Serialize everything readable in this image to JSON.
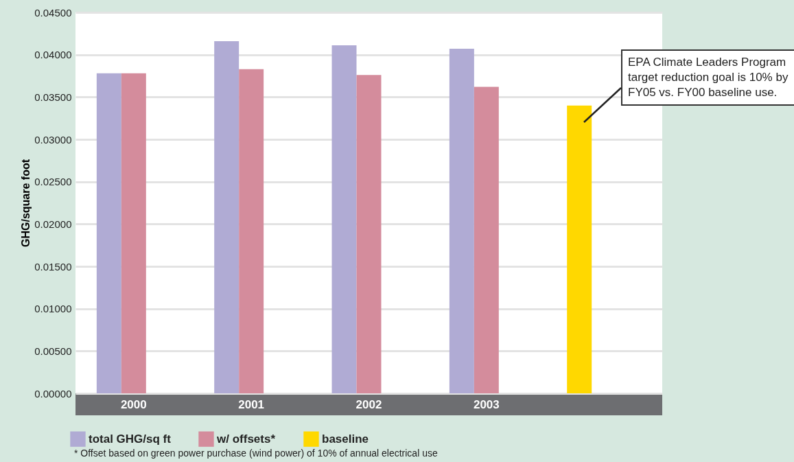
{
  "chart_data": {
    "type": "bar",
    "ylabel": "GHG/square foot",
    "categories": [
      "2000",
      "2001",
      "2002",
      "2003",
      null
    ],
    "series": [
      {
        "name": "total GHG/sq ft",
        "color": "#b0abd4",
        "values": [
          0.0378,
          0.0416,
          0.0411,
          0.0407,
          null
        ]
      },
      {
        "name": "w/ offsets*",
        "color": "#d48c9c",
        "values": [
          0.0378,
          0.0383,
          0.0376,
          0.0362,
          null
        ]
      },
      {
        "name": "baseline",
        "color": "#ffd800",
        "values": [
          null,
          null,
          null,
          null,
          0.034
        ]
      }
    ],
    "ylim": [
      0,
      0.045
    ],
    "yticks": [
      {
        "value": 0,
        "label": "0.00000"
      },
      {
        "value": 0.005,
        "label": "0.00500"
      },
      {
        "value": 0.01,
        "label": "0.01000"
      },
      {
        "value": 0.015,
        "label": "0.01500"
      },
      {
        "value": 0.02,
        "label": "0.02000"
      },
      {
        "value": 0.025,
        "label": "0.02500"
      },
      {
        "value": 0.03,
        "label": "0.03000"
      },
      {
        "value": 0.035,
        "label": "0.03500"
      },
      {
        "value": 0.04,
        "label": "0.04000"
      },
      {
        "value": 0.045,
        "label": "0.04500"
      }
    ],
    "grid": "y",
    "legend": "bottom left",
    "annotations": [
      "EPA Climate Leaders Program target reduction goal is 10% by FY05 vs. FY00 baseline use.",
      "* Offset based on green power purchase (wind power) of 10% of annual electrical use"
    ]
  }
}
